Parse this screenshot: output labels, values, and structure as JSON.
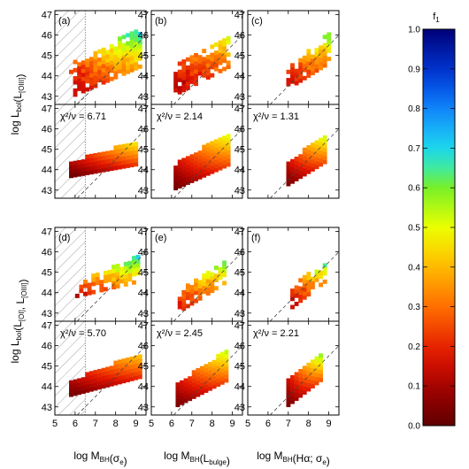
{
  "chart_data": {
    "type": "heatmap",
    "description_axes": {
      "xlim": [
        5,
        9.5
      ],
      "ylim": [
        42.6,
        47.2
      ],
      "x_ticks": [
        "5",
        "6",
        "7",
        "8",
        "9"
      ],
      "y_ticks": [
        "43",
        "44",
        "45",
        "46",
        "47"
      ],
      "one_to_one_line": "dashed, y = x + 36.5"
    },
    "y_labels": [
      {
        "main": "log L",
        "sub": "bol",
        "paren": "(L",
        "sub2": "[OIII]",
        "close": ")"
      },
      {
        "main": "log L",
        "sub": "bol",
        "paren": "(L",
        "sub2": "[OI]",
        "mid": ", L",
        "sub3": "[OIII]",
        "close": ")"
      }
    ],
    "x_labels": [
      {
        "main": "log M",
        "sub": "BH",
        "paren": "(σ",
        "sub2": "e",
        "close": ")"
      },
      {
        "main": "log M",
        "sub": "BH",
        "paren": "(L",
        "sub2": "bulge",
        "close": ")"
      },
      {
        "main": "log M",
        "sub": "BH",
        "paren": "(Hα; σ",
        "sub2": "e",
        "close": ")"
      }
    ],
    "colorbar": {
      "label": "f",
      "label_sub": "1",
      "range": [
        0.0,
        1.0
      ],
      "ticks": [
        "0.0",
        "0.1",
        "0.2",
        "0.3",
        "0.4",
        "0.5",
        "0.6",
        "0.7",
        "0.8",
        "0.9",
        "1.0"
      ],
      "colormap": "rainbow (dark red → red → orange → yellow → green → cyan → blue → dark blue)"
    },
    "hatch_region_x_max": 6.5,
    "panels": [
      {
        "id": "a",
        "label": "(a)",
        "row": 0,
        "col": 0,
        "kind": "data",
        "hatch": true,
        "shape": {
          "xmin": 5.7,
          "xmax": 9.2,
          "ylo_start": 42.9,
          "ylo_end": 44.4,
          "yhi_start": 44.5,
          "yhi_end": 46.3
        },
        "f_range": [
          0.1,
          0.72
        ]
      },
      {
        "id": "b",
        "label": "(b)",
        "row": 0,
        "col": 1,
        "kind": "data",
        "hatch": false,
        "shape": {
          "xmin": 6.1,
          "xmax": 8.8,
          "ylo_start": 43.0,
          "ylo_end": 44.4,
          "yhi_start": 44.4,
          "yhi_end": 45.9
        },
        "f_range": [
          0.1,
          0.52
        ]
      },
      {
        "id": "c",
        "label": "(c)",
        "row": 0,
        "col": 2,
        "kind": "data",
        "hatch": false,
        "shape": {
          "xmin": 6.9,
          "xmax": 9.0,
          "ylo_start": 43.3,
          "ylo_end": 44.6,
          "yhi_start": 44.3,
          "yhi_end": 46.1
        },
        "f_range": [
          0.12,
          0.62
        ]
      },
      {
        "id": "a-model",
        "label": "",
        "chi2": "χ²/ν = 6.71",
        "row": 1,
        "col": 0,
        "kind": "model",
        "hatch": true,
        "shape": {
          "xmin": 5.7,
          "xmax": 9.1,
          "ylo_start": 43.6,
          "ylo_end": 44.2,
          "yhi_start": 44.3,
          "yhi_end": 45.4
        },
        "f_range": [
          0.02,
          0.52
        ]
      },
      {
        "id": "b-model",
        "label": "",
        "chi2": "χ²/ν = 2.14",
        "row": 1,
        "col": 1,
        "kind": "model",
        "hatch": false,
        "shape": {
          "xmin": 6.1,
          "xmax": 8.8,
          "ylo_start": 43.0,
          "ylo_end": 44.2,
          "yhi_start": 44.2,
          "yhi_end": 45.8
        },
        "f_range": [
          0.03,
          0.55
        ]
      },
      {
        "id": "c-model",
        "label": "",
        "chi2": "χ²/ν = 1.31",
        "row": 1,
        "col": 2,
        "kind": "model",
        "hatch": false,
        "shape": {
          "xmin": 6.9,
          "xmax": 8.9,
          "ylo_start": 43.2,
          "ylo_end": 44.4,
          "yhi_start": 44.3,
          "yhi_end": 45.8
        },
        "f_range": [
          0.04,
          0.6
        ]
      },
      {
        "id": "d",
        "label": "(d)",
        "row": 2,
        "col": 0,
        "kind": "data",
        "hatch": true,
        "shape": {
          "xmin": 5.8,
          "xmax": 9.2,
          "ylo_start": 43.7,
          "ylo_end": 44.5,
          "yhi_start": 44.3,
          "yhi_end": 45.8
        },
        "f_range": [
          0.12,
          0.72
        ]
      },
      {
        "id": "e",
        "label": "(e)",
        "row": 2,
        "col": 1,
        "kind": "data",
        "hatch": false,
        "shape": {
          "xmin": 6.3,
          "xmax": 8.7,
          "ylo_start": 43.0,
          "ylo_end": 44.5,
          "yhi_start": 44.0,
          "yhi_end": 45.6
        },
        "f_range": [
          0.15,
          0.68
        ]
      },
      {
        "id": "f",
        "label": "(f)",
        "row": 2,
        "col": 2,
        "kind": "data",
        "hatch": false,
        "shape": {
          "xmin": 7.1,
          "xmax": 8.9,
          "ylo_start": 43.2,
          "ylo_end": 44.6,
          "yhi_start": 44.3,
          "yhi_end": 45.5
        },
        "f_range": [
          0.12,
          0.68
        ]
      },
      {
        "id": "d-model",
        "label": "",
        "chi2": "χ²/ν = 5.70",
        "row": 3,
        "col": 0,
        "kind": "model",
        "hatch": true,
        "shape": {
          "xmin": 5.7,
          "xmax": 9.2,
          "ylo_start": 43.5,
          "ylo_end": 44.4,
          "yhi_start": 44.2,
          "yhi_end": 45.6
        },
        "f_range": [
          0.03,
          0.45
        ]
      },
      {
        "id": "e-model",
        "label": "",
        "chi2": "χ²/ν = 2.45",
        "row": 3,
        "col": 1,
        "kind": "model",
        "hatch": false,
        "shape": {
          "xmin": 6.2,
          "xmax": 8.8,
          "ylo_start": 43.0,
          "ylo_end": 44.3,
          "yhi_start": 44.1,
          "yhi_end": 45.8
        },
        "f_range": [
          0.04,
          0.58
        ]
      },
      {
        "id": "f-model",
        "label": "",
        "chi2": "χ²/ν = 2.21",
        "row": 3,
        "col": 2,
        "kind": "model",
        "hatch": false,
        "shape": {
          "xmin": 6.9,
          "xmax": 8.6,
          "ylo_start": 43.0,
          "ylo_end": 44.3,
          "yhi_start": 44.3,
          "yhi_end": 45.5
        },
        "f_range": [
          0.04,
          0.6
        ]
      }
    ]
  }
}
